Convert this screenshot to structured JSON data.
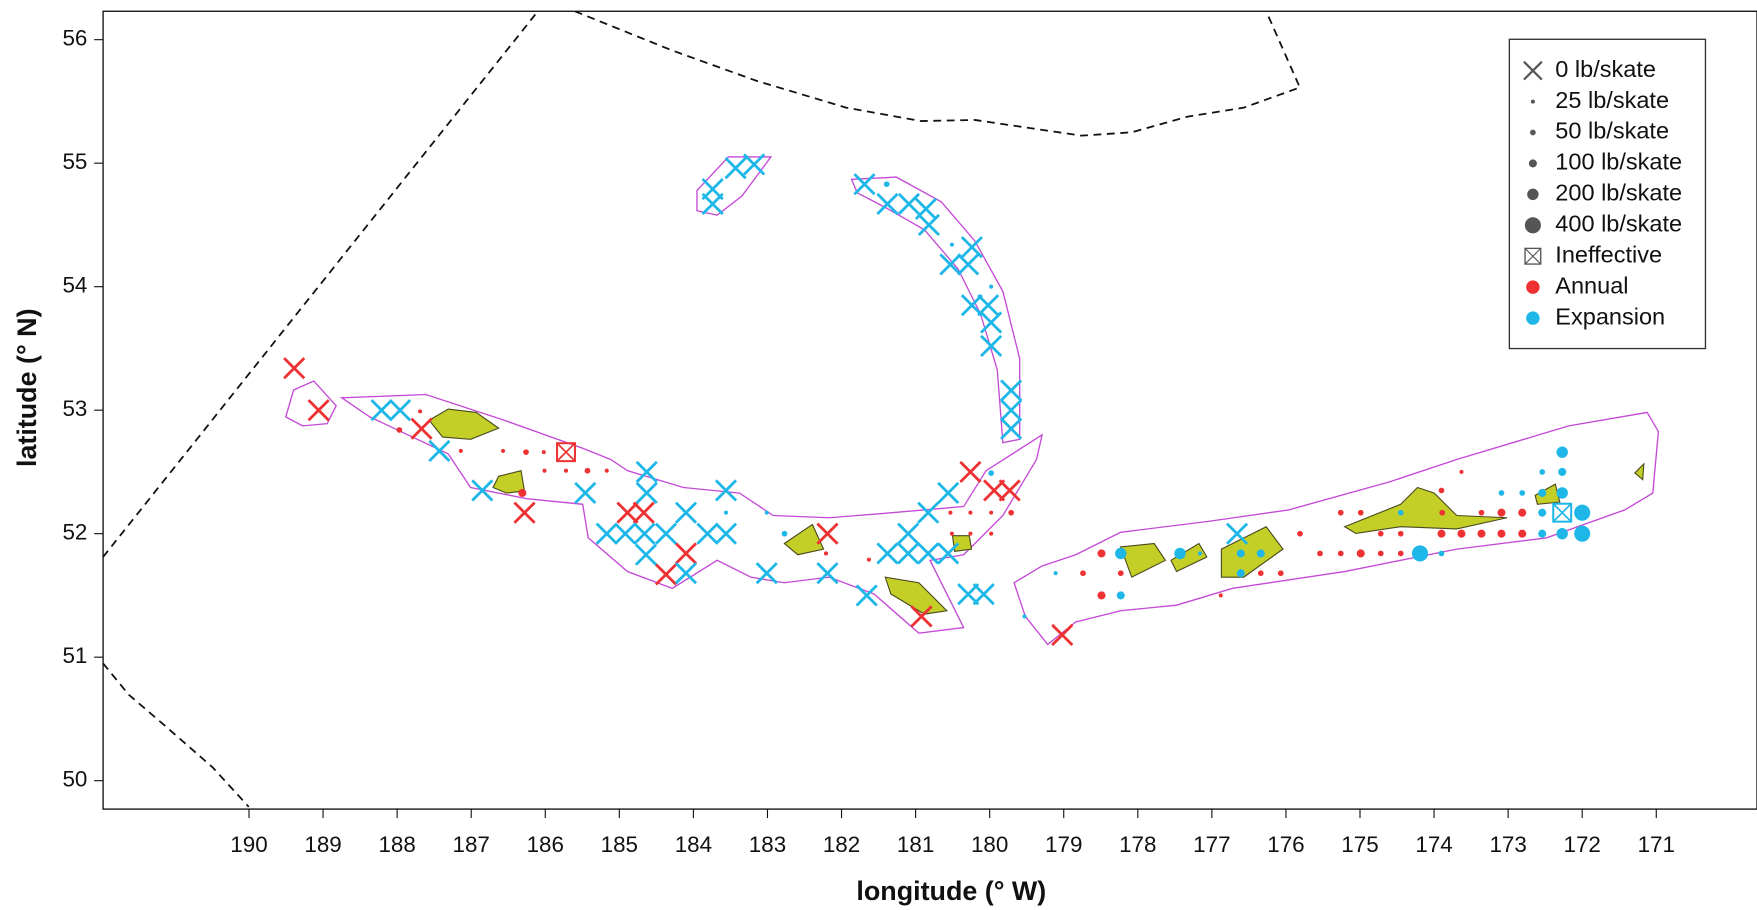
{
  "chart_data": {
    "type": "scatter",
    "x_label": "longitude (° W)",
    "y_label": "latitude (° N)",
    "xlim": [
      191.97,
      169.64
    ],
    "ylim": [
      49.77,
      56.23
    ],
    "xticks": [
      190,
      189,
      188,
      187,
      186,
      185,
      184,
      183,
      182,
      181,
      180,
      179,
      178,
      177,
      176,
      175,
      174,
      173,
      172,
      171
    ],
    "yticks": [
      50,
      51,
      52,
      53,
      54,
      55,
      56
    ],
    "legend": "top-right",
    "size_legend": [
      {
        "value": 0,
        "label": "0 lb/skate"
      },
      {
        "value": 25,
        "label": "25 lb/skate"
      },
      {
        "value": 50,
        "label": "50 lb/skate"
      },
      {
        "value": 100,
        "label": "100 lb/skate"
      },
      {
        "value": 200,
        "label": "200 lb/skate"
      },
      {
        "value": 400,
        "label": "400 lb/skate"
      }
    ],
    "ineffective_label": "Ineffective",
    "series": [
      {
        "name": "Annual",
        "color": "#ee3233",
        "x": [
          189.39,
          189.06,
          187.67,
          186.28,
          184.89,
          184.67,
          184.37,
          184.1,
          182.19,
          180.26,
          179.94,
          179.73,
          180.92,
          179.02,
          187.97,
          187.69,
          187.14,
          186.57,
          186.26,
          186.02,
          186.31,
          186.01,
          185.72,
          185.43,
          185.17,
          182.21,
          181.63,
          180.53,
          180.26,
          179.98,
          180.26,
          180.51,
          179.98,
          179.71,
          178.74,
          178.49,
          178.49,
          178.23,
          176.88,
          176.34,
          176.07,
          175.81,
          175.54,
          175.26,
          174.99,
          174.72,
          174.45,
          175.26,
          174.99,
          174.72,
          174.45,
          173.9,
          173.9,
          173.63,
          173.36,
          173.09,
          172.81,
          173.63,
          173.89,
          173.36,
          173.09,
          172.81
        ],
        "y": [
          53.34,
          53.0,
          52.85,
          52.17,
          52.17,
          52.17,
          51.67,
          51.84,
          52.0,
          52.5,
          52.35,
          52.35,
          51.33,
          51.18,
          52.84,
          52.99,
          52.67,
          52.67,
          52.66,
          52.66,
          52.33,
          52.51,
          52.51,
          52.51,
          52.51,
          51.84,
          51.79,
          52.17,
          52.17,
          52.17,
          52.0,
          52.0,
          52.0,
          52.17,
          51.68,
          51.84,
          51.5,
          51.68,
          51.5,
          51.68,
          51.68,
          52.0,
          51.84,
          51.84,
          51.84,
          51.84,
          51.84,
          52.17,
          52.17,
          52.0,
          52.0,
          52.35,
          52.0,
          52.0,
          52.0,
          52.0,
          52.0,
          52.5,
          52.17,
          52.17,
          52.17,
          52.17
        ],
        "size": [
          0,
          0,
          0,
          0,
          0,
          0,
          0,
          0,
          0,
          0,
          0,
          0,
          0,
          0,
          50,
          25,
          25,
          25,
          50,
          25,
          100,
          25,
          25,
          50,
          25,
          25,
          25,
          25,
          25,
          25,
          25,
          25,
          25,
          50,
          50,
          100,
          100,
          50,
          25,
          50,
          50,
          50,
          50,
          50,
          100,
          50,
          50,
          50,
          50,
          50,
          50,
          50,
          100,
          100,
          100,
          100,
          100,
          25,
          50,
          50,
          100,
          100
        ],
        "ineffective_x": [
          185.72
        ],
        "ineffective_y": [
          52.66
        ]
      },
      {
        "name": "Expansion",
        "color": "#1fb7e8",
        "x": [
          183.74,
          183.74,
          183.43,
          183.18,
          181.69,
          181.38,
          181.09,
          180.86,
          180.82,
          180.24,
          180.29,
          180.53,
          180.24,
          180.02,
          179.98,
          179.98,
          179.71,
          179.71,
          179.71,
          188.21,
          187.96,
          187.43,
          186.85,
          184.63,
          184.63,
          185.46,
          183.56,
          185.17,
          184.92,
          184.66,
          184.37,
          184.64,
          184.1,
          184.1,
          183.81,
          183.56,
          183.01,
          182.19,
          181.66,
          181.38,
          181.1,
          180.83,
          180.56,
          181.1,
          180.83,
          180.56,
          180.29,
          180.08,
          176.66,
          181.39,
          180.51,
          179.98,
          179.98,
          183.56,
          183.01,
          182.77,
          179.53,
          179.11,
          178.23,
          177.43,
          177.16,
          176.61,
          176.34,
          178.23,
          176.61,
          174.19,
          173.9,
          174.45,
          173.09,
          172.81,
          172.54,
          172.54,
          172.54,
          172.54,
          172.27,
          172.27,
          172.27,
          172.27,
          172.0,
          172.0
        ],
        "y": [
          54.79,
          54.67,
          54.96,
          54.99,
          54.83,
          54.67,
          54.67,
          54.63,
          54.5,
          54.32,
          54.18,
          54.18,
          53.85,
          53.85,
          53.71,
          53.52,
          53.16,
          53.0,
          52.85,
          53.0,
          53.0,
          52.67,
          52.35,
          52.5,
          52.33,
          52.33,
          52.35,
          52.0,
          52.0,
          52.0,
          52.0,
          51.83,
          52.17,
          51.68,
          52.0,
          52.0,
          51.68,
          51.68,
          51.5,
          51.84,
          52.0,
          52.17,
          52.33,
          51.84,
          51.84,
          51.84,
          51.51,
          51.51,
          52.0,
          54.83,
          54.34,
          54.0,
          52.49,
          52.17,
          52.17,
          52.0,
          51.33,
          51.68,
          51.84,
          51.84,
          51.84,
          51.84,
          51.84,
          51.5,
          51.68,
          51.84,
          51.84,
          52.17,
          52.33,
          52.33,
          52.5,
          52.33,
          52.17,
          52.0,
          52.66,
          52.5,
          52.33,
          52.0,
          52.17,
          52.0
        ],
        "size": [
          0,
          0,
          0,
          0,
          0,
          0,
          0,
          0,
          0,
          0,
          0,
          0,
          0,
          0,
          0,
          0,
          0,
          0,
          0,
          0,
          0,
          0,
          0,
          0,
          0,
          0,
          0,
          0,
          0,
          0,
          0,
          0,
          0,
          0,
          0,
          0,
          0,
          0,
          0,
          0,
          0,
          0,
          0,
          0,
          0,
          0,
          0,
          0,
          0,
          50,
          25,
          25,
          50,
          25,
          25,
          50,
          25,
          25,
          200,
          200,
          25,
          100,
          100,
          100,
          100,
          400,
          50,
          50,
          50,
          50,
          50,
          100,
          100,
          100,
          200,
          100,
          200,
          200,
          400,
          400
        ],
        "ineffective_x": [
          172.27
        ],
        "ineffective_y": [
          52.17
        ]
      }
    ]
  }
}
